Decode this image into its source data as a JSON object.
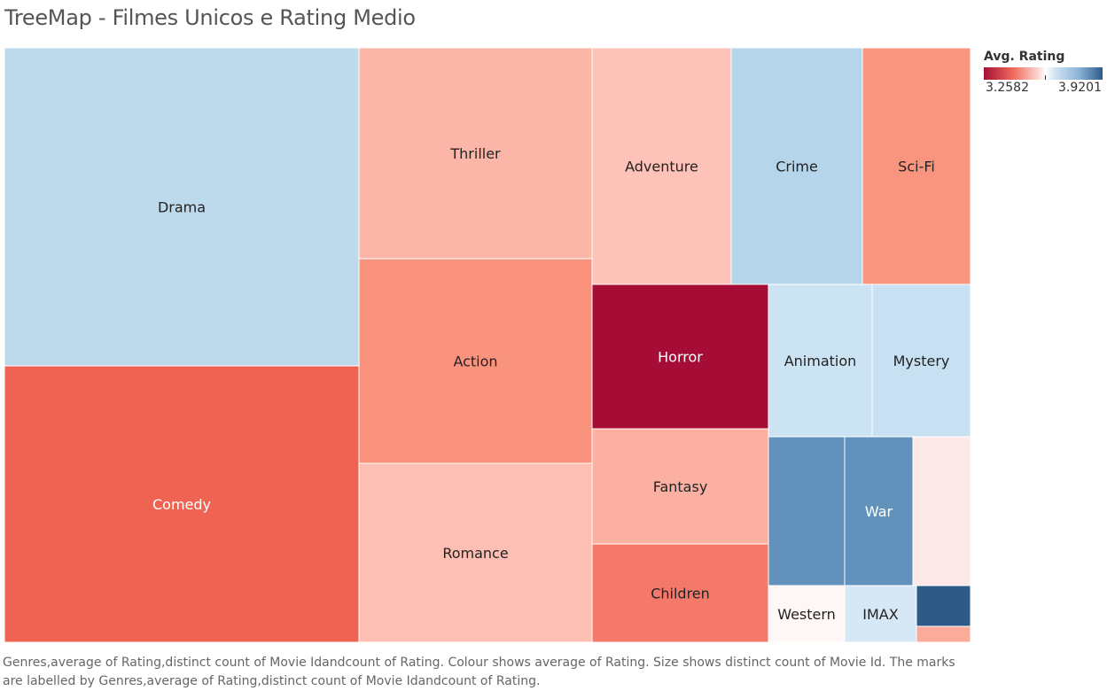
{
  "title": "TreeMap - Filmes Unicos e Rating Medio",
  "legend": {
    "title": "Avg. Rating",
    "min_label": "3.2582",
    "max_label": "3.9201",
    "low_color": "#a50f32",
    "high_color": "#2d5a8a"
  },
  "caption": "Genres,average of Rating,distinct count of Movie Idandcount of Rating. Colour shows average of Rating. Size shows distinct count of Movie Id. The marks are labelled by Genres,average of Rating,distinct count of Movie Idandcount of Rating.",
  "chart_data": {
    "type": "treemap",
    "size_measure": "distinct count of Movie Id",
    "color_measure": "Avg. Rating",
    "color_range": [
      3.2582,
      3.9201
    ],
    "tiles": [
      {
        "label": "Drama",
        "color": "#bcdaec",
        "text_color": "#222222"
      },
      {
        "label": "Comedy",
        "color": "#ef6352",
        "text_color": "#ffffff"
      },
      {
        "label": "Thriller",
        "color": "#fcb6a8",
        "text_color": "#222222"
      },
      {
        "label": "Action",
        "color": "#f9937e",
        "text_color": "#222222"
      },
      {
        "label": "Romance",
        "color": "#fdbfb3",
        "text_color": "#222222"
      },
      {
        "label": "Adventure",
        "color": "#fec3b8",
        "text_color": "#222222"
      },
      {
        "label": "Crime",
        "color": "#b4d5ea",
        "text_color": "#222222"
      },
      {
        "label": "Sci-Fi",
        "color": "#f9957f",
        "text_color": "#222222"
      },
      {
        "label": "Horror",
        "color": "#a60d36",
        "text_color": "#ffffff"
      },
      {
        "label": "Fantasy",
        "color": "#fcb0a1",
        "text_color": "#222222"
      },
      {
        "label": "Children",
        "color": "#f4796a",
        "text_color": "#222222"
      },
      {
        "label": "Animation",
        "color": "#cce3f3",
        "text_color": "#222222"
      },
      {
        "label": "Mystery",
        "color": "#c7e0f2",
        "text_color": "#222222"
      },
      {
        "label": "",
        "color": "#6292bb",
        "text_color": "#ffffff"
      },
      {
        "label": "War",
        "color": "#6292bb",
        "text_color": "#ffffff"
      },
      {
        "label": "",
        "color": "#fce9e7",
        "text_color": "#222222"
      },
      {
        "label": "Western",
        "color": "#fff7f6",
        "text_color": "#222222"
      },
      {
        "label": "IMAX",
        "color": "#d6e8f6",
        "text_color": "#222222"
      },
      {
        "label": "",
        "color": "#2e5a88",
        "text_color": "#ffffff"
      },
      {
        "label": "",
        "color": "#fbab9a",
        "text_color": "#222222"
      }
    ]
  }
}
